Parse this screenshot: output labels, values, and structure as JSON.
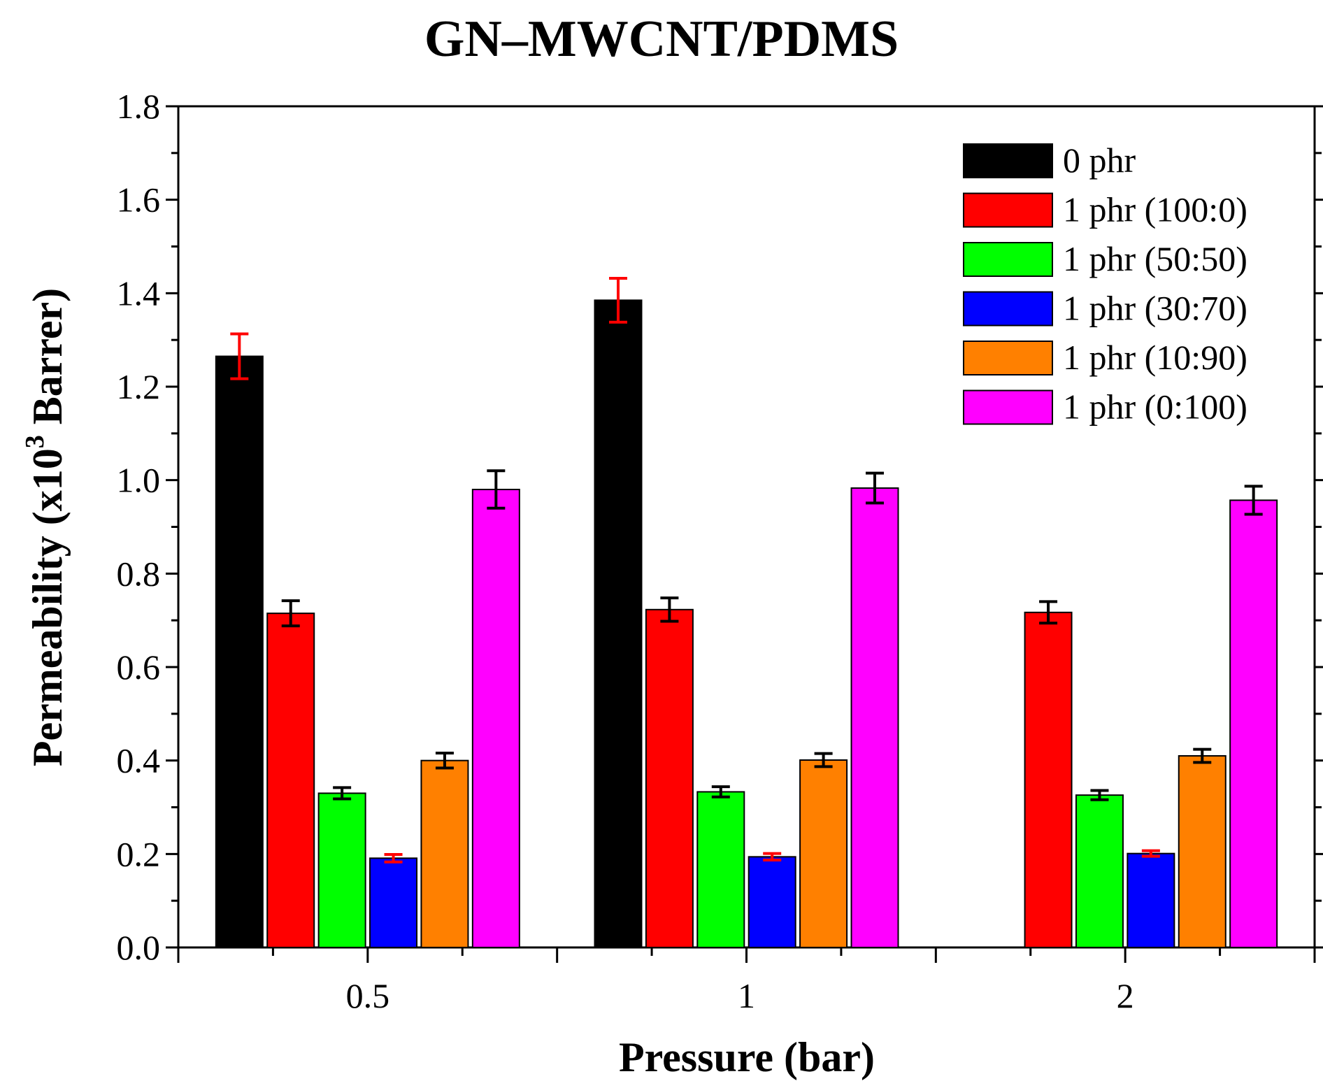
{
  "chart_data": {
    "type": "bar",
    "title": "GN–MWCNT/PDMS",
    "xlabel": "Pressure (bar)",
    "ylabel": {
      "prefix": "Permeability (x10",
      "superscript": "3",
      "suffix": " Barrer)"
    },
    "ylim": [
      0,
      1.8
    ],
    "yticks": [
      "0.0",
      "0.2",
      "0.4",
      "0.6",
      "0.8",
      "1.0",
      "1.2",
      "1.4",
      "1.6",
      "1.8"
    ],
    "categories": [
      "0.5",
      "1",
      "2"
    ],
    "legend_position": "top-right",
    "series": [
      {
        "name": "0 phr",
        "color": "#000000",
        "values": [
          1.265,
          1.385,
          null
        ],
        "errors": [
          0.048,
          0.047,
          null
        ],
        "error_color": "#ff0000"
      },
      {
        "name": "1 phr (100:0)",
        "color": "#ff0000",
        "values": [
          0.715,
          0.723,
          0.717
        ],
        "errors": [
          0.027,
          0.025,
          0.023
        ],
        "error_color": "#000000"
      },
      {
        "name": "1 phr (50:50)",
        "color": "#00ff00",
        "values": [
          0.33,
          0.333,
          0.326
        ],
        "errors": [
          0.012,
          0.011,
          0.01
        ],
        "error_color": "#000000"
      },
      {
        "name": "1 phr (30:70)",
        "color": "#0000ff",
        "values": [
          0.191,
          0.194,
          0.201
        ],
        "errors": [
          0.008,
          0.007,
          0.006
        ],
        "error_color": "#ff0000"
      },
      {
        "name": "1 phr (10:90)",
        "color": "#ff8000",
        "values": [
          0.4,
          0.401,
          0.41
        ],
        "errors": [
          0.016,
          0.014,
          0.014
        ],
        "error_color": "#000000"
      },
      {
        "name": "1 phr (0:100)",
        "color": "#ff00ff",
        "values": [
          0.98,
          0.983,
          0.957
        ],
        "errors": [
          0.04,
          0.032,
          0.03
        ],
        "error_color": "#000000"
      }
    ]
  }
}
